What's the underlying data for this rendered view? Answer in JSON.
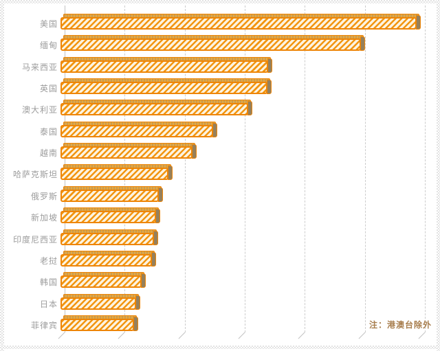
{
  "chart": {
    "note_label": "注：港澳台除外",
    "colors": {
      "bar-stripe": "#F2950F",
      "bar-stripe-bg": "#FDF3E0",
      "bar-border": "#EE8506",
      "bar-top-a": "#C89B52",
      "bar-top-b": "#E8A93E",
      "bar-cap": "#95805C",
      "label": "#9C9C9C",
      "note": "#A87E4E",
      "grid": "#CCCCCC",
      "grid-axis": "#C2C2C2",
      "frame": "#E3E3E3"
    }
  },
  "chart_data": {
    "type": "bar",
    "orientation": "horizontal",
    "title": "",
    "xlabel": "",
    "ylabel": "",
    "legend": "none",
    "grid": "vertical dashed gridlines, 7 lines, no numeric tick labels visible",
    "annotation": "注：港澳台除外",
    "categories": [
      "美国",
      "缅甸",
      "马来西亚",
      "英国",
      "澳大利亚",
      "泰国",
      "越南",
      "哈萨克斯坦",
      "俄罗斯",
      "新加坡",
      "印度尼西亚",
      "老挝",
      "韩国",
      "日本",
      "菲律宾"
    ],
    "values": [
      5.93,
      5.01,
      3.46,
      3.45,
      3.13,
      2.54,
      2.2,
      1.8,
      1.64,
      1.59,
      1.56,
      1.52,
      1.35,
      1.26,
      1.23
    ],
    "value_axis": {
      "tick_labels_visible": false,
      "range_grid_units": [
        0,
        6
      ],
      "note": "values estimated in gridline-spacing units; no numeric axis labels are shown in the image"
    }
  }
}
